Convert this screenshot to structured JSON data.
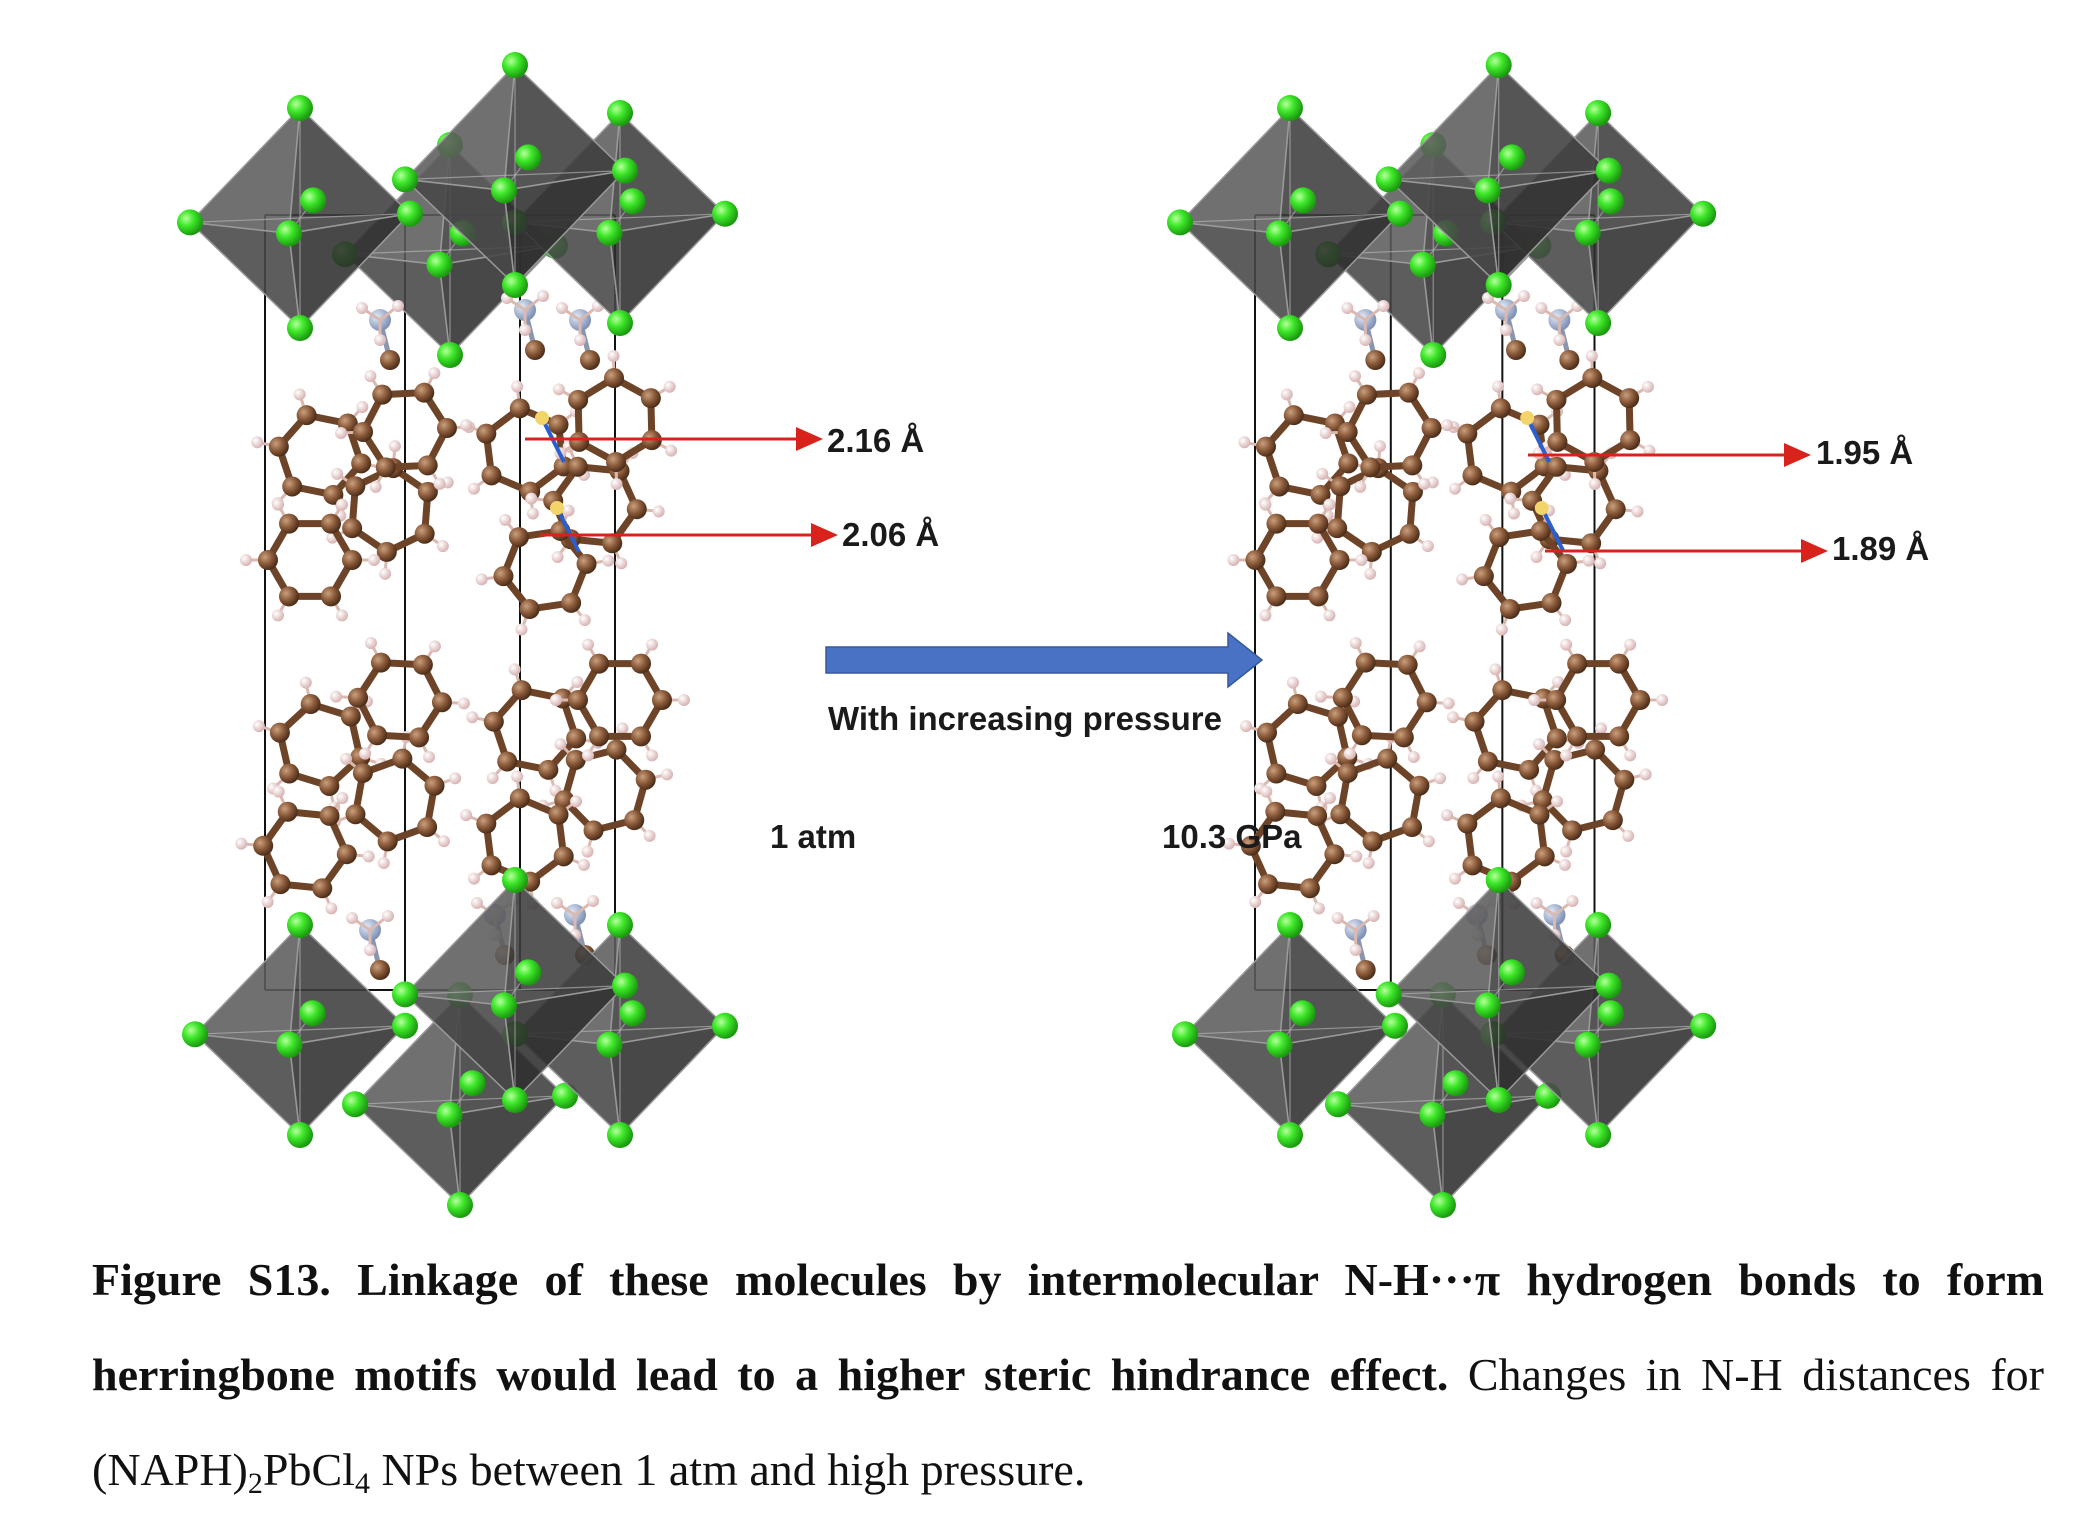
{
  "figure": {
    "left_panel": {
      "condition_label": "1 atm",
      "distances": [
        "2.16 Å",
        "2.06 Å"
      ]
    },
    "right_panel": {
      "condition_label": "10.3 GPa",
      "distances": [
        "1.95 Å",
        "1.89 Å"
      ]
    },
    "arrow_label": "With increasing pressure",
    "colors": {
      "octahedron": "#4d4d4d",
      "chlorine": "#3ee82a",
      "carbon": "#8a5a3a",
      "hydrogen": "#e8c8c8",
      "nitrogen": "#9aaac8",
      "distance_arrow": "#d8231c",
      "pressure_arrow": "#4a72c4",
      "bond_marker": "#2a5fd0"
    }
  },
  "caption": {
    "title": "Figure S13. Linkage of these molecules by intermolecular N-H···π hydrogen bonds to form herringbone motifs would lead to a higher steric hindrance effect.",
    "body_1": "Changes in N-H distances for (NAPH)",
    "sub_2": "2",
    "body_2": "PbCl",
    "sub_4": "4",
    "body_3": " NPs between 1 atm and high pressure."
  }
}
